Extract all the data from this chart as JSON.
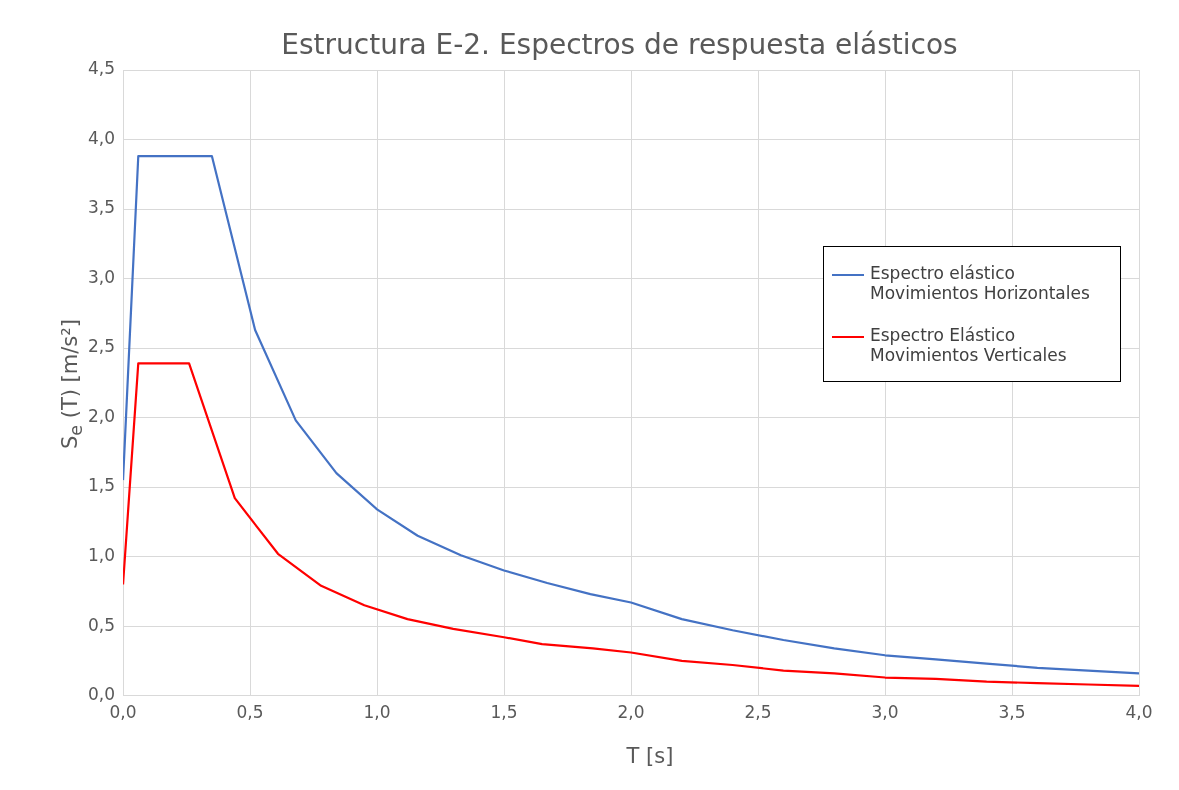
{
  "chart_data": {
    "type": "line",
    "title": "Estructura E-2. Espectros de respuesta elásticos",
    "xlabel": "T [s]",
    "ylabel": "S$_{e}$ (T) [m/s²]",
    "xlim": [
      0,
      4
    ],
    "xticks": [
      {
        "value": 0,
        "label": "0,0"
      },
      {
        "value": 0.5,
        "label": "0,5"
      },
      {
        "value": 1,
        "label": "1,0"
      },
      {
        "value": 1.5,
        "label": "1,5"
      },
      {
        "value": 2,
        "label": "2,0"
      },
      {
        "value": 2.5,
        "label": "2,5"
      },
      {
        "value": 3,
        "label": "3,0"
      },
      {
        "value": 3.5,
        "label": "3,5"
      },
      {
        "value": 4,
        "label": "4,0"
      }
    ],
    "ylim": [
      0,
      4.5
    ],
    "yticks": [
      {
        "value": 0,
        "label": "0,0"
      },
      {
        "value": 0.5,
        "label": "0,5"
      },
      {
        "value": 1,
        "label": "1,0"
      },
      {
        "value": 1.5,
        "label": "1,5"
      },
      {
        "value": 2,
        "label": "2,0"
      },
      {
        "value": 2.5,
        "label": "2,5"
      },
      {
        "value": 3,
        "label": "3,0"
      },
      {
        "value": 3.5,
        "label": "3,5"
      },
      {
        "value": 4,
        "label": "4,0"
      },
      {
        "value": 4.5,
        "label": "4,5"
      }
    ],
    "grid": true,
    "legend": "right",
    "marker": "none",
    "line_style": "solid",
    "series": [
      {
        "name": "Espectro elástico Movimientos Horizontales",
        "color": "#4472c4",
        "x": [
          0,
          0.06,
          0.35,
          0.52,
          0.68,
          0.84,
          1.0,
          1.16,
          1.33,
          1.5,
          1.67,
          1.84,
          2.0,
          2.2,
          2.4,
          2.6,
          2.8,
          3.0,
          3.2,
          3.4,
          3.6,
          3.8,
          4.0
        ],
        "values": [
          1.55,
          3.88,
          3.88,
          2.63,
          1.98,
          1.6,
          1.34,
          1.15,
          1.01,
          0.9,
          0.81,
          0.73,
          0.67,
          0.55,
          0.47,
          0.4,
          0.34,
          0.29,
          0.26,
          0.23,
          0.2,
          0.18,
          0.16
        ]
      },
      {
        "name": "Espectro Elástico Movimientos Verticales",
        "color": "#ff0000",
        "x": [
          0,
          0.06,
          0.26,
          0.44,
          0.61,
          0.78,
          0.95,
          1.12,
          1.3,
          1.5,
          1.65,
          1.85,
          2.0,
          2.2,
          2.4,
          2.6,
          2.8,
          3.0,
          3.2,
          3.4,
          3.6,
          3.8,
          4.0
        ],
        "values": [
          0.8,
          2.39,
          2.39,
          1.42,
          1.02,
          0.79,
          0.65,
          0.55,
          0.48,
          0.42,
          0.37,
          0.34,
          0.31,
          0.25,
          0.22,
          0.18,
          0.16,
          0.13,
          0.12,
          0.1,
          0.09,
          0.08,
          0.07
        ]
      }
    ]
  }
}
